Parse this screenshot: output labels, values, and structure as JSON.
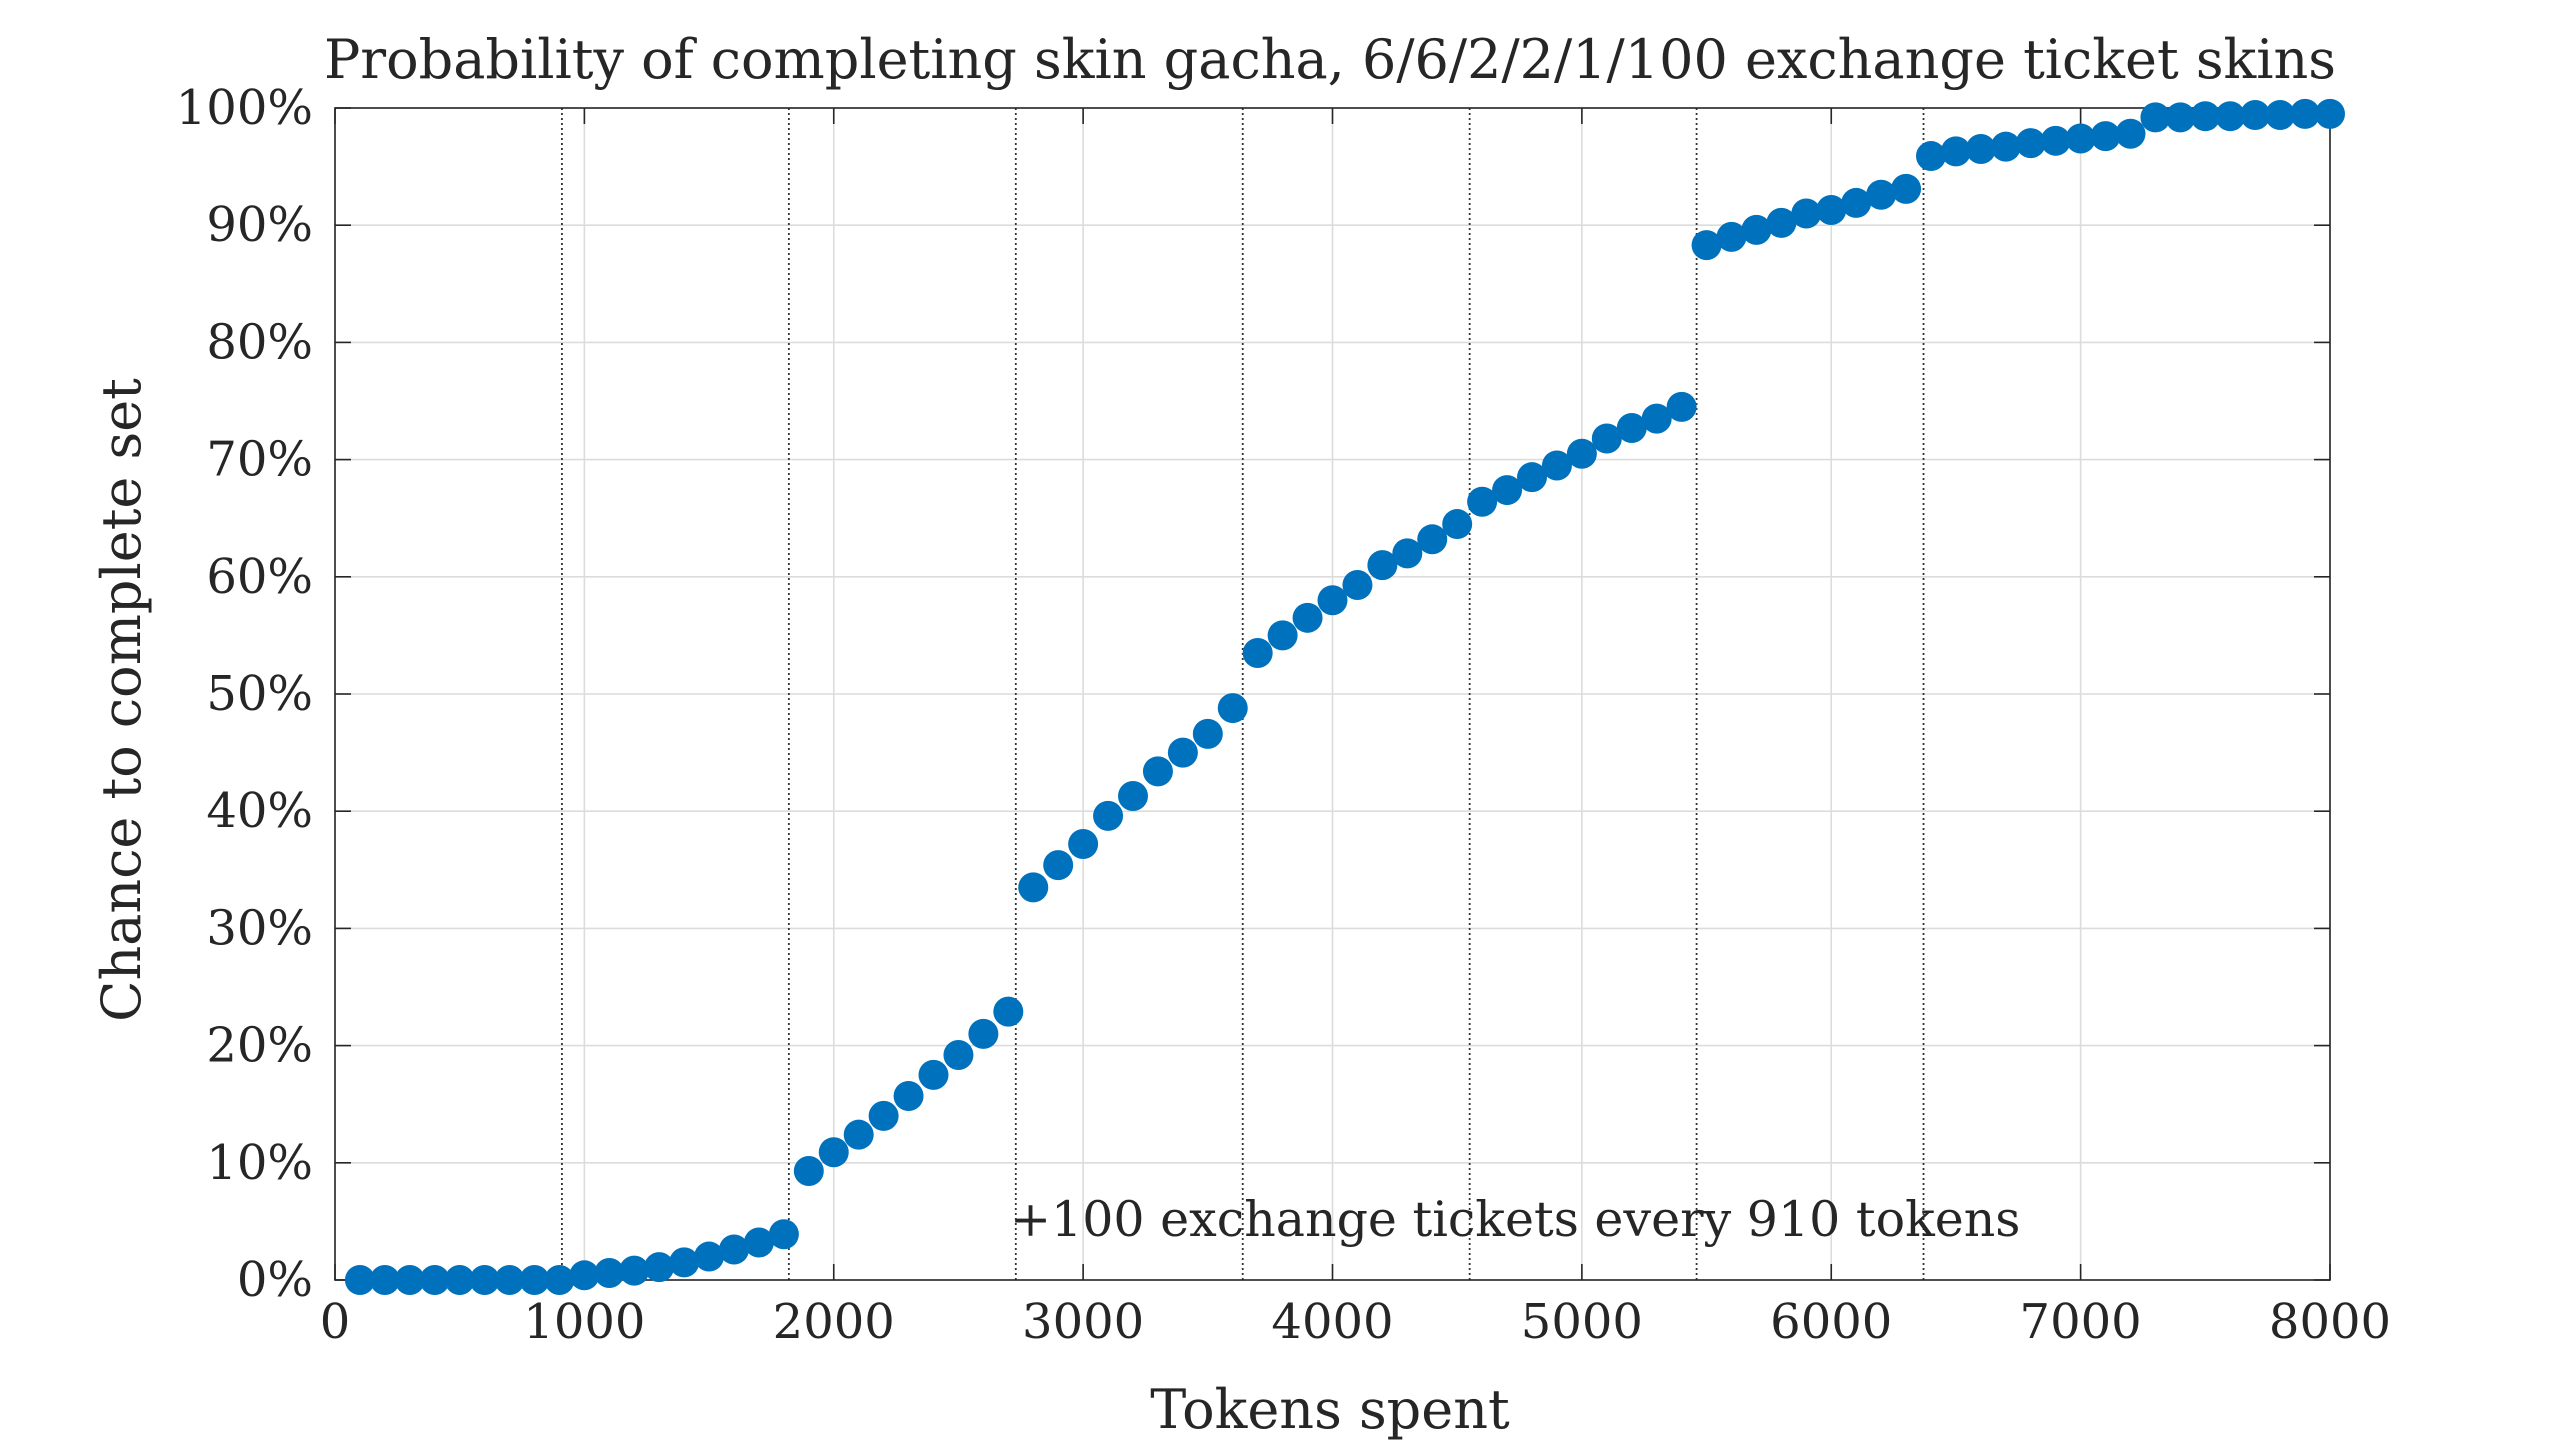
{
  "chart_data": {
    "type": "scatter",
    "title": "Probability of completing skin gacha, 6/6/2/2/1/100 exchange ticket skins",
    "xlabel": "Tokens spent",
    "ylabel": "Chance to complete set",
    "xlim": [
      0,
      8000
    ],
    "ylim": [
      0,
      100
    ],
    "x_ticks": [
      0,
      1000,
      2000,
      3000,
      4000,
      5000,
      6000,
      7000,
      8000
    ],
    "x_tick_labels": [
      "0",
      "1000",
      "2000",
      "3000",
      "4000",
      "5000",
      "6000",
      "7000",
      "8000"
    ],
    "y_ticks": [
      0,
      10,
      20,
      30,
      40,
      50,
      60,
      70,
      80,
      90,
      100
    ],
    "y_tick_labels": [
      "0%",
      "10%",
      "20%",
      "30%",
      "40%",
      "50%",
      "60%",
      "70%",
      "80%",
      "90%",
      "100%"
    ],
    "grid": true,
    "annotation": "+100 exchange tickets every 910 tokens",
    "vertical_lines_x": [
      910,
      1820,
      2730,
      3640,
      4550,
      5460,
      6370
    ],
    "marker_color": "#0072bd",
    "series": [
      {
        "x": [
          100,
          200,
          300,
          400,
          500,
          600,
          700,
          800,
          900,
          1000,
          1100,
          1200,
          1300,
          1400,
          1500,
          1600,
          1700,
          1800,
          1900,
          2000,
          2100,
          2200,
          2300,
          2400,
          2500,
          2600,
          2700,
          2800,
          2900,
          3000,
          3100,
          3200,
          3300,
          3400,
          3500,
          3600,
          3700,
          3800,
          3900,
          4000,
          4100,
          4200,
          4300,
          4400,
          4500,
          4600,
          4700,
          4800,
          4900,
          5000,
          5100,
          5200,
          5300,
          5400,
          5500,
          5600,
          5700,
          5800,
          5900,
          6000,
          6100,
          6200,
          6300,
          6400,
          6500,
          6600,
          6700,
          6800,
          6900,
          7000,
          7100,
          7200,
          7300,
          7400,
          7500,
          7600,
          7700,
          7800,
          7900,
          8000
        ],
        "values": [
          0,
          0,
          0,
          0,
          0,
          0,
          0,
          0,
          0,
          0.4,
          0.6,
          0.8,
          1.1,
          1.5,
          2.0,
          2.6,
          3.2,
          3.9,
          9.3,
          10.9,
          12.4,
          14.0,
          15.7,
          17.5,
          19.2,
          21.0,
          22.9,
          33.5,
          35.4,
          37.2,
          39.6,
          41.3,
          43.4,
          45.0,
          46.6,
          48.8,
          53.5,
          55.0,
          56.5,
          58.0,
          59.3,
          61.0,
          62.0,
          63.2,
          64.5,
          66.4,
          67.4,
          68.5,
          69.5,
          70.5,
          71.8,
          72.7,
          73.5,
          74.5,
          88.3,
          89.0,
          89.6,
          90.2,
          91.0,
          91.3,
          91.9,
          92.6,
          93.1,
          95.9,
          96.3,
          96.5,
          96.7,
          97.0,
          97.2,
          97.4,
          97.6,
          97.8,
          99.2,
          99.2,
          99.3,
          99.3,
          99.4,
          99.4,
          99.5,
          99.5
        ]
      }
    ]
  }
}
